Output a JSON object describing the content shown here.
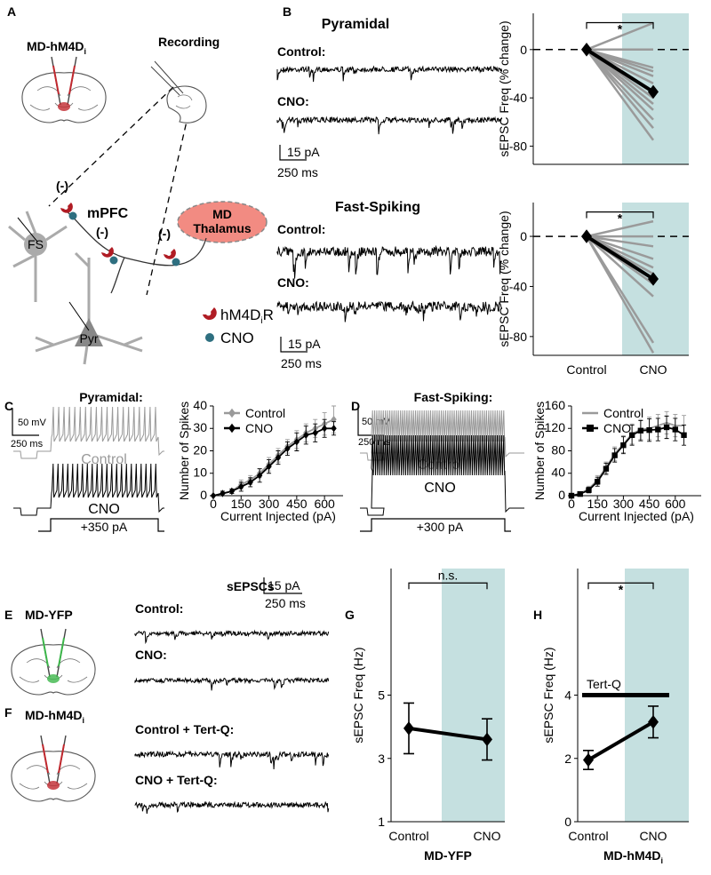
{
  "panel_labels": {
    "a": "A",
    "b": "B",
    "c": "C",
    "d": "D",
    "e": "E",
    "f": "F",
    "g": "G",
    "h": "H"
  },
  "panel_a": {
    "virus": "MD-hM4D",
    "virus_subscript": "i",
    "recording": "Recording",
    "region": "mPFC",
    "thalamus_line1": "MD",
    "thalamus_line2": "Thalamus",
    "fs": "FS",
    "pyr": "Pyr",
    "inhibition": "(-)",
    "legend_receptor": "hM4D",
    "legend_receptor_subscript": "i",
    "legend_receptor_suffix": "R",
    "legend_cno": "CNO"
  },
  "panel_b": {
    "top_title": "Pyramidal",
    "bottom_title": "Fast-Spiking",
    "control": "Control:",
    "cno": "CNO:",
    "scale_current": "15 pA",
    "scale_time": "250 ms"
  },
  "panel_c": {
    "title": "Pyramidal:",
    "scale_voltage": "50 mV",
    "scale_time": "250 ms",
    "control": "Control",
    "cno": "CNO",
    "current_step": "+350 pA"
  },
  "panel_d": {
    "title": "Fast-Spiking:",
    "scale_voltage": "50 mV",
    "scale_time": "250 ms",
    "control": "Control",
    "cno": "CNO",
    "current_step": "+300 pA"
  },
  "panel_e": {
    "virus": "MD-YFP",
    "title": "sEPSCs",
    "scale_current": "15 pA",
    "scale_time": "250 ms",
    "control": "Control:",
    "cno": "CNO:"
  },
  "panel_f": {
    "virus": "MD-hM4D",
    "virus_subscript": "i",
    "control": "Control + Tert-Q:",
    "cno": "CNO + Tert-Q:"
  },
  "chart_data": [
    {
      "type": "line",
      "y_label": "sEPSC Freq (% change)",
      "categories": [
        null,
        null
      ],
      "ylim": [
        -95,
        30
      ],
      "yticks": [
        0,
        -40,
        -80
      ],
      "ref_line": 0,
      "shaded": true,
      "shade_color": "#c5e0e0",
      "significance": "*",
      "series": [
        {
          "color": "#9a9a9a",
          "values": [
            0,
            22
          ]
        },
        {
          "color": "#9a9a9a",
          "values": [
            0,
            0
          ]
        },
        {
          "color": "#9a9a9a",
          "values": [
            0,
            -15
          ]
        },
        {
          "color": "#9a9a9a",
          "values": [
            0,
            -18
          ]
        },
        {
          "color": "#9a9a9a",
          "values": [
            0,
            -22
          ]
        },
        {
          "color": "#9a9a9a",
          "values": [
            0,
            -28
          ]
        },
        {
          "color": "#9a9a9a",
          "values": [
            0,
            -40
          ]
        },
        {
          "color": "#9a9a9a",
          "values": [
            0,
            -45
          ]
        },
        {
          "color": "#9a9a9a",
          "values": [
            0,
            -50
          ]
        },
        {
          "color": "#9a9a9a",
          "values": [
            0,
            -58
          ]
        },
        {
          "color": "#9a9a9a",
          "values": [
            0,
            -65
          ]
        },
        {
          "color": "#9a9a9a",
          "values": [
            0,
            -75
          ]
        },
        {
          "color": "#000000",
          "marker": "diamond",
          "values": [
            0,
            -35
          ]
        }
      ]
    },
    {
      "type": "line",
      "y_label": "sEPSC Freq (% change)",
      "categories": [
        "Control",
        "CNO"
      ],
      "ylim": [
        -95,
        27
      ],
      "yticks": [
        0,
        -40,
        -80
      ],
      "ref_line": 0,
      "shaded": true,
      "shade_color": "#c5e0e0",
      "significance": "*",
      "series": [
        {
          "color": "#9a9a9a",
          "values": [
            0,
            12
          ]
        },
        {
          "color": "#9a9a9a",
          "values": [
            0,
            0
          ]
        },
        {
          "color": "#9a9a9a",
          "values": [
            0,
            -8
          ]
        },
        {
          "color": "#9a9a9a",
          "values": [
            0,
            -18
          ]
        },
        {
          "color": "#9a9a9a",
          "values": [
            0,
            -25
          ]
        },
        {
          "color": "#9a9a9a",
          "values": [
            0,
            -30
          ]
        },
        {
          "color": "#9a9a9a",
          "values": [
            0,
            -38
          ]
        },
        {
          "color": "#9a9a9a",
          "values": [
            0,
            -48
          ]
        },
        {
          "color": "#9a9a9a",
          "values": [
            0,
            -85
          ]
        },
        {
          "color": "#9a9a9a",
          "values": [
            0,
            -93
          ]
        },
        {
          "color": "#000000",
          "marker": "diamond",
          "values": [
            0,
            -34
          ]
        }
      ]
    },
    {
      "type": "line",
      "x_label": "Current Injected (pA)",
      "y_label": "Number of Spikes",
      "x": [
        0,
        50,
        100,
        150,
        200,
        250,
        300,
        350,
        400,
        450,
        500,
        550,
        600,
        650
      ],
      "xlim": [
        0,
        700
      ],
      "xticks": [
        0,
        150,
        300,
        450,
        600
      ],
      "ylim": [
        0,
        40
      ],
      "yticks": [
        0,
        10,
        20,
        30,
        40
      ],
      "legend": "upper-left",
      "series": [
        {
          "name": "Control",
          "color": "#9a9a9a",
          "marker": "diamond",
          "values": [
            0,
            1,
            2,
            5,
            7,
            10,
            14,
            18,
            22,
            25,
            28,
            30,
            32,
            34
          ],
          "errors": [
            0,
            1,
            1,
            2,
            2,
            2,
            3,
            3,
            3,
            4,
            4,
            4,
            5,
            6
          ]
        },
        {
          "name": "CNO",
          "color": "#000000",
          "marker": "diamond",
          "values": [
            0,
            1,
            2,
            4,
            6,
            9,
            13,
            17,
            21,
            24,
            27,
            28,
            30,
            30
          ],
          "errors": [
            0,
            1,
            1,
            2,
            2,
            3,
            3,
            3,
            3,
            4,
            4,
            4,
            4,
            3
          ]
        }
      ]
    },
    {
      "type": "line",
      "x_label": "Current Injected (pA)",
      "y_label": "Number of Spikes",
      "x": [
        0,
        50,
        100,
        150,
        200,
        250,
        300,
        350,
        400,
        450,
        500,
        550,
        600,
        650
      ],
      "xlim": [
        0,
        750
      ],
      "xticks": [
        0,
        150,
        300,
        450,
        600
      ],
      "ylim": [
        0,
        160
      ],
      "yticks": [
        0,
        40,
        80,
        120,
        160
      ],
      "legend": "upper-left",
      "series": [
        {
          "name": "Control",
          "color": "#9a9a9a",
          "values": [
            0,
            4,
            12,
            28,
            50,
            75,
            92,
            110,
            118,
            120,
            125,
            130,
            125,
            125
          ],
          "errors": [
            0,
            3,
            5,
            8,
            10,
            12,
            15,
            18,
            18,
            20,
            20,
            20,
            20,
            18
          ]
        },
        {
          "name": "CNO",
          "color": "#000000",
          "marker": "square",
          "values": [
            0,
            3,
            10,
            25,
            48,
            72,
            90,
            108,
            116,
            117,
            118,
            122,
            118,
            108
          ],
          "errors": [
            0,
            3,
            5,
            8,
            10,
            12,
            15,
            18,
            18,
            20,
            20,
            20,
            20,
            18
          ]
        }
      ]
    },
    {
      "type": "line",
      "y_label": "sEPSC Freq (Hz)",
      "x_label": "MD-YFP",
      "categories": [
        "Control",
        "CNO"
      ],
      "ylim": [
        1,
        9
      ],
      "yticks": [
        1,
        3,
        5
      ],
      "shaded": true,
      "shade_color": "#c5e0e0",
      "significance": "n.s.",
      "series": [
        {
          "color": "#000000",
          "marker": "diamond",
          "values": [
            3.95,
            3.6
          ],
          "errors": [
            0.8,
            0.65
          ]
        }
      ]
    },
    {
      "type": "line",
      "y_label": "sEPSC Freq (Hz)",
      "x_label": "MD-hM4D",
      "x_label_subscript": "i",
      "categories": [
        "Control",
        "CNO"
      ],
      "ylim": [
        0,
        8
      ],
      "yticks": [
        0,
        2,
        4
      ],
      "shaded": true,
      "shade_color": "#c5e0e0",
      "significance": "*",
      "annotation": "Tert-Q",
      "series": [
        {
          "color": "#000000",
          "marker": "diamond",
          "values": [
            1.95,
            3.15
          ],
          "errors": [
            0.3,
            0.5
          ]
        }
      ]
    }
  ]
}
